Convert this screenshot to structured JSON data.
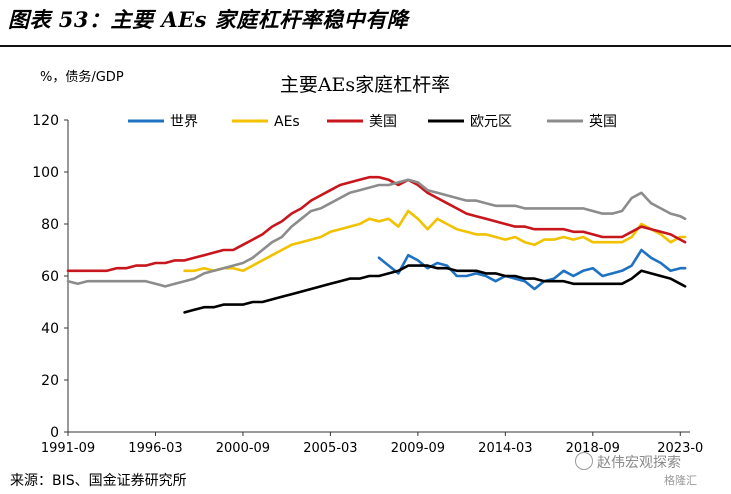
{
  "figure_title": "图表 53：主要 AEs 家庭杠杆率稳中有降",
  "source": "来源：BIS、国金证券研究所",
  "watermark": "赵伟宏观探索",
  "watermark2": "格隆汇",
  "chart_data": {
    "type": "line",
    "title": "主要AEs家庭杠杆率",
    "ylabel": "%，债务/GDP",
    "xlabel": "",
    "ylim": [
      0,
      120
    ],
    "yticks": [
      0,
      20,
      40,
      60,
      80,
      100,
      120
    ],
    "xlim": [
      1991.75,
      2023.75
    ],
    "xticks": [
      {
        "label": "1991-09",
        "t": 1991.75
      },
      {
        "label": "1996-03",
        "t": 1996.25
      },
      {
        "label": "2000-09",
        "t": 2000.75
      },
      {
        "label": "2005-03",
        "t": 2005.25
      },
      {
        "label": "2009-09",
        "t": 2009.75
      },
      {
        "label": "2014-03",
        "t": 2014.25
      },
      {
        "label": "2018-09",
        "t": 2018.75
      },
      {
        "label": "2023-0",
        "t": 2023.25
      }
    ],
    "grid": false,
    "legend_position": "top",
    "series": [
      {
        "name": "世界",
        "color": "#1f72c2",
        "points": [
          [
            2007.75,
            67
          ],
          [
            2008.25,
            64
          ],
          [
            2008.75,
            61
          ],
          [
            2009.25,
            68
          ],
          [
            2009.75,
            66
          ],
          [
            2010.25,
            63
          ],
          [
            2010.75,
            65
          ],
          [
            2011.25,
            64
          ],
          [
            2011.75,
            60
          ],
          [
            2012.25,
            60
          ],
          [
            2012.75,
            61
          ],
          [
            2013.25,
            60
          ],
          [
            2013.75,
            58
          ],
          [
            2014.25,
            60
          ],
          [
            2014.75,
            59
          ],
          [
            2015.25,
            58
          ],
          [
            2015.75,
            55
          ],
          [
            2016.25,
            58
          ],
          [
            2016.75,
            59
          ],
          [
            2017.25,
            62
          ],
          [
            2017.75,
            60
          ],
          [
            2018.25,
            62
          ],
          [
            2018.75,
            63
          ],
          [
            2019.25,
            60
          ],
          [
            2019.75,
            61
          ],
          [
            2020.25,
            62
          ],
          [
            2020.75,
            64
          ],
          [
            2021.25,
            70
          ],
          [
            2021.75,
            67
          ],
          [
            2022.25,
            65
          ],
          [
            2022.75,
            62
          ],
          [
            2023.25,
            63
          ],
          [
            2023.5,
            63
          ]
        ]
      },
      {
        "name": "AEs",
        "color": "#f2c200",
        "points": [
          [
            1997.75,
            62
          ],
          [
            1998.25,
            62
          ],
          [
            1998.75,
            63
          ],
          [
            1999.25,
            62
          ],
          [
            1999.75,
            63
          ],
          [
            2000.25,
            63
          ],
          [
            2000.75,
            62
          ],
          [
            2001.25,
            64
          ],
          [
            2001.75,
            66
          ],
          [
            2002.25,
            68
          ],
          [
            2002.75,
            70
          ],
          [
            2003.25,
            72
          ],
          [
            2003.75,
            73
          ],
          [
            2004.25,
            74
          ],
          [
            2004.75,
            75
          ],
          [
            2005.25,
            77
          ],
          [
            2005.75,
            78
          ],
          [
            2006.25,
            79
          ],
          [
            2006.75,
            80
          ],
          [
            2007.25,
            82
          ],
          [
            2007.75,
            81
          ],
          [
            2008.25,
            82
          ],
          [
            2008.75,
            79
          ],
          [
            2009.25,
            85
          ],
          [
            2009.75,
            82
          ],
          [
            2010.25,
            78
          ],
          [
            2010.75,
            82
          ],
          [
            2011.25,
            80
          ],
          [
            2011.75,
            78
          ],
          [
            2012.25,
            77
          ],
          [
            2012.75,
            76
          ],
          [
            2013.25,
            76
          ],
          [
            2013.75,
            75
          ],
          [
            2014.25,
            74
          ],
          [
            2014.75,
            75
          ],
          [
            2015.25,
            73
          ],
          [
            2015.75,
            72
          ],
          [
            2016.25,
            74
          ],
          [
            2016.75,
            74
          ],
          [
            2017.25,
            75
          ],
          [
            2017.75,
            74
          ],
          [
            2018.25,
            75
          ],
          [
            2018.75,
            73
          ],
          [
            2019.25,
            73
          ],
          [
            2019.75,
            73
          ],
          [
            2020.25,
            73
          ],
          [
            2020.75,
            75
          ],
          [
            2021.25,
            80
          ],
          [
            2021.75,
            78
          ],
          [
            2022.25,
            76
          ],
          [
            2022.75,
            73
          ],
          [
            2023.25,
            75
          ],
          [
            2023.5,
            75
          ]
        ]
      },
      {
        "name": "美国",
        "color": "#c8161d",
        "points": [
          [
            1991.75,
            62
          ],
          [
            1992.25,
            62
          ],
          [
            1992.75,
            62
          ],
          [
            1993.25,
            62
          ],
          [
            1993.75,
            62
          ],
          [
            1994.25,
            63
          ],
          [
            1994.75,
            63
          ],
          [
            1995.25,
            64
          ],
          [
            1995.75,
            64
          ],
          [
            1996.25,
            65
          ],
          [
            1996.75,
            65
          ],
          [
            1997.25,
            66
          ],
          [
            1997.75,
            66
          ],
          [
            1998.25,
            67
          ],
          [
            1998.75,
            68
          ],
          [
            1999.25,
            69
          ],
          [
            1999.75,
            70
          ],
          [
            2000.25,
            70
          ],
          [
            2000.75,
            72
          ],
          [
            2001.25,
            74
          ],
          [
            2001.75,
            76
          ],
          [
            2002.25,
            79
          ],
          [
            2002.75,
            81
          ],
          [
            2003.25,
            84
          ],
          [
            2003.75,
            86
          ],
          [
            2004.25,
            89
          ],
          [
            2004.75,
            91
          ],
          [
            2005.25,
            93
          ],
          [
            2005.75,
            95
          ],
          [
            2006.25,
            96
          ],
          [
            2006.75,
            97
          ],
          [
            2007.25,
            98
          ],
          [
            2007.75,
            98
          ],
          [
            2008.25,
            97
          ],
          [
            2008.75,
            95
          ],
          [
            2009.25,
            97
          ],
          [
            2009.75,
            95
          ],
          [
            2010.25,
            92
          ],
          [
            2010.75,
            90
          ],
          [
            2011.25,
            88
          ],
          [
            2011.75,
            86
          ],
          [
            2012.25,
            84
          ],
          [
            2012.75,
            83
          ],
          [
            2013.25,
            82
          ],
          [
            2013.75,
            81
          ],
          [
            2014.25,
            80
          ],
          [
            2014.75,
            79
          ],
          [
            2015.25,
            79
          ],
          [
            2015.75,
            78
          ],
          [
            2016.25,
            78
          ],
          [
            2016.75,
            78
          ],
          [
            2017.25,
            78
          ],
          [
            2017.75,
            77
          ],
          [
            2018.25,
            77
          ],
          [
            2018.75,
            76
          ],
          [
            2019.25,
            75
          ],
          [
            2019.75,
            75
          ],
          [
            2020.25,
            75
          ],
          [
            2020.75,
            77
          ],
          [
            2021.25,
            79
          ],
          [
            2021.75,
            78
          ],
          [
            2022.25,
            77
          ],
          [
            2022.75,
            76
          ],
          [
            2023.25,
            74
          ],
          [
            2023.5,
            73
          ]
        ]
      },
      {
        "name": "欧元区",
        "color": "#000000",
        "points": [
          [
            1997.75,
            46
          ],
          [
            1998.25,
            47
          ],
          [
            1998.75,
            48
          ],
          [
            1999.25,
            48
          ],
          [
            1999.75,
            49
          ],
          [
            2000.25,
            49
          ],
          [
            2000.75,
            49
          ],
          [
            2001.25,
            50
          ],
          [
            2001.75,
            50
          ],
          [
            2002.25,
            51
          ],
          [
            2002.75,
            52
          ],
          [
            2003.25,
            53
          ],
          [
            2003.75,
            54
          ],
          [
            2004.25,
            55
          ],
          [
            2004.75,
            56
          ],
          [
            2005.25,
            57
          ],
          [
            2005.75,
            58
          ],
          [
            2006.25,
            59
          ],
          [
            2006.75,
            59
          ],
          [
            2007.25,
            60
          ],
          [
            2007.75,
            60
          ],
          [
            2008.25,
            61
          ],
          [
            2008.75,
            62
          ],
          [
            2009.25,
            64
          ],
          [
            2009.75,
            64
          ],
          [
            2010.25,
            64
          ],
          [
            2010.75,
            63
          ],
          [
            2011.25,
            63
          ],
          [
            2011.75,
            62
          ],
          [
            2012.25,
            62
          ],
          [
            2012.75,
            62
          ],
          [
            2013.25,
            61
          ],
          [
            2013.75,
            61
          ],
          [
            2014.25,
            60
          ],
          [
            2014.75,
            60
          ],
          [
            2015.25,
            59
          ],
          [
            2015.75,
            59
          ],
          [
            2016.25,
            58
          ],
          [
            2016.75,
            58
          ],
          [
            2017.25,
            58
          ],
          [
            2017.75,
            57
          ],
          [
            2018.25,
            57
          ],
          [
            2018.75,
            57
          ],
          [
            2019.25,
            57
          ],
          [
            2019.75,
            57
          ],
          [
            2020.25,
            57
          ],
          [
            2020.75,
            59
          ],
          [
            2021.25,
            62
          ],
          [
            2021.75,
            61
          ],
          [
            2022.25,
            60
          ],
          [
            2022.75,
            59
          ],
          [
            2023.25,
            57
          ],
          [
            2023.5,
            56
          ]
        ]
      },
      {
        "name": "英国",
        "color": "#8c8c8c",
        "points": [
          [
            1991.75,
            58
          ],
          [
            1992.25,
            57
          ],
          [
            1992.75,
            58
          ],
          [
            1993.25,
            58
          ],
          [
            1993.75,
            58
          ],
          [
            1994.25,
            58
          ],
          [
            1994.75,
            58
          ],
          [
            1995.25,
            58
          ],
          [
            1995.75,
            58
          ],
          [
            1996.25,
            57
          ],
          [
            1996.75,
            56
          ],
          [
            1997.25,
            57
          ],
          [
            1997.75,
            58
          ],
          [
            1998.25,
            59
          ],
          [
            1998.75,
            61
          ],
          [
            1999.25,
            62
          ],
          [
            1999.75,
            63
          ],
          [
            2000.25,
            64
          ],
          [
            2000.75,
            65
          ],
          [
            2001.25,
            67
          ],
          [
            2001.75,
            70
          ],
          [
            2002.25,
            73
          ],
          [
            2002.75,
            75
          ],
          [
            2003.25,
            79
          ],
          [
            2003.75,
            82
          ],
          [
            2004.25,
            85
          ],
          [
            2004.75,
            86
          ],
          [
            2005.25,
            88
          ],
          [
            2005.75,
            90
          ],
          [
            2006.25,
            92
          ],
          [
            2006.75,
            93
          ],
          [
            2007.25,
            94
          ],
          [
            2007.75,
            95
          ],
          [
            2008.25,
            95
          ],
          [
            2008.75,
            96
          ],
          [
            2009.25,
            97
          ],
          [
            2009.75,
            96
          ],
          [
            2010.25,
            93
          ],
          [
            2010.75,
            92
          ],
          [
            2011.25,
            91
          ],
          [
            2011.75,
            90
          ],
          [
            2012.25,
            89
          ],
          [
            2012.75,
            89
          ],
          [
            2013.25,
            88
          ],
          [
            2013.75,
            87
          ],
          [
            2014.25,
            87
          ],
          [
            2014.75,
            87
          ],
          [
            2015.25,
            86
          ],
          [
            2015.75,
            86
          ],
          [
            2016.25,
            86
          ],
          [
            2016.75,
            86
          ],
          [
            2017.25,
            86
          ],
          [
            2017.75,
            86
          ],
          [
            2018.25,
            86
          ],
          [
            2018.75,
            85
          ],
          [
            2019.25,
            84
          ],
          [
            2019.75,
            84
          ],
          [
            2020.25,
            85
          ],
          [
            2020.75,
            90
          ],
          [
            2021.25,
            92
          ],
          [
            2021.75,
            88
          ],
          [
            2022.25,
            86
          ],
          [
            2022.75,
            84
          ],
          [
            2023.25,
            83
          ],
          [
            2023.5,
            82
          ]
        ]
      }
    ]
  }
}
